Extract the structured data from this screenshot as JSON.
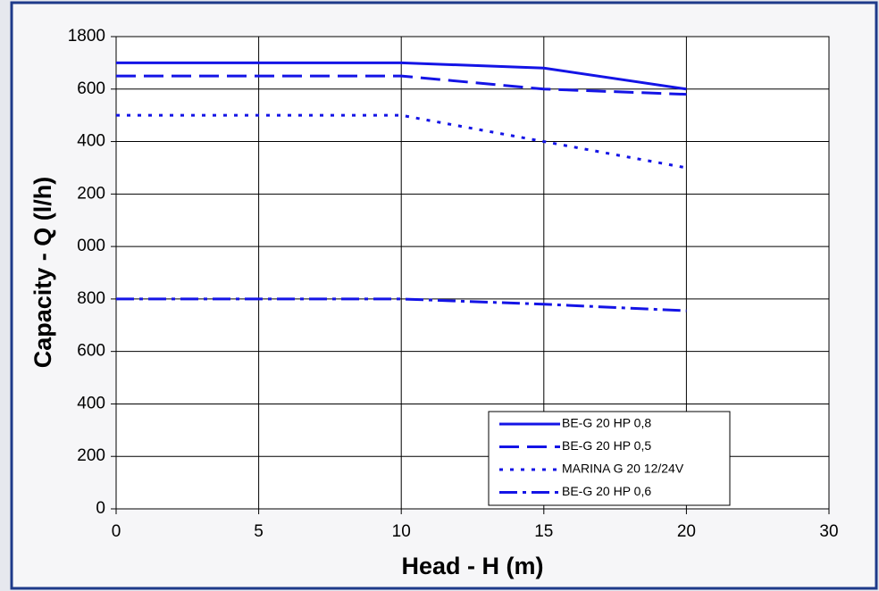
{
  "chart_data": {
    "type": "line",
    "ylabel": "Capacity - Q (l/h)",
    "xlabel": "Head - H (m)",
    "categories": [
      "0",
      "5",
      "10",
      "15",
      "20",
      "30"
    ],
    "series": [
      {
        "name": "BE-G 20 HP 0,8",
        "color": "#1414e6",
        "dash": "solid",
        "values": [
          1700,
          1700,
          1700,
          1680,
          1600,
          null
        ]
      },
      {
        "name": "BE-G 20 HP 0,5",
        "color": "#1414e6",
        "dash": "dashed",
        "values": [
          1650,
          1650,
          1650,
          1600,
          1580,
          null
        ]
      },
      {
        "name": "MARINA G 20 12/24V",
        "color": "#1414e6",
        "dash": "dotted",
        "values": [
          1500,
          1500,
          1500,
          1400,
          1300,
          null
        ]
      },
      {
        "name": "BE-G 20 HP 0,6",
        "color": "#1414e6",
        "dash": "dashdot",
        "values": [
          800,
          800,
          800,
          780,
          755,
          null
        ]
      }
    ],
    "ylim": [
      0,
      1800
    ],
    "yticks": [
      0,
      200,
      400,
      600,
      800,
      {
        "value": 1000,
        "label": "000"
      },
      {
        "value": 1200,
        "label": "200"
      },
      {
        "value": 1400,
        "label": "400"
      },
      {
        "value": 1600,
        "label": "600"
      },
      {
        "value": 1800,
        "label": "1800"
      }
    ],
    "grid": true,
    "legend": "lower-right"
  }
}
